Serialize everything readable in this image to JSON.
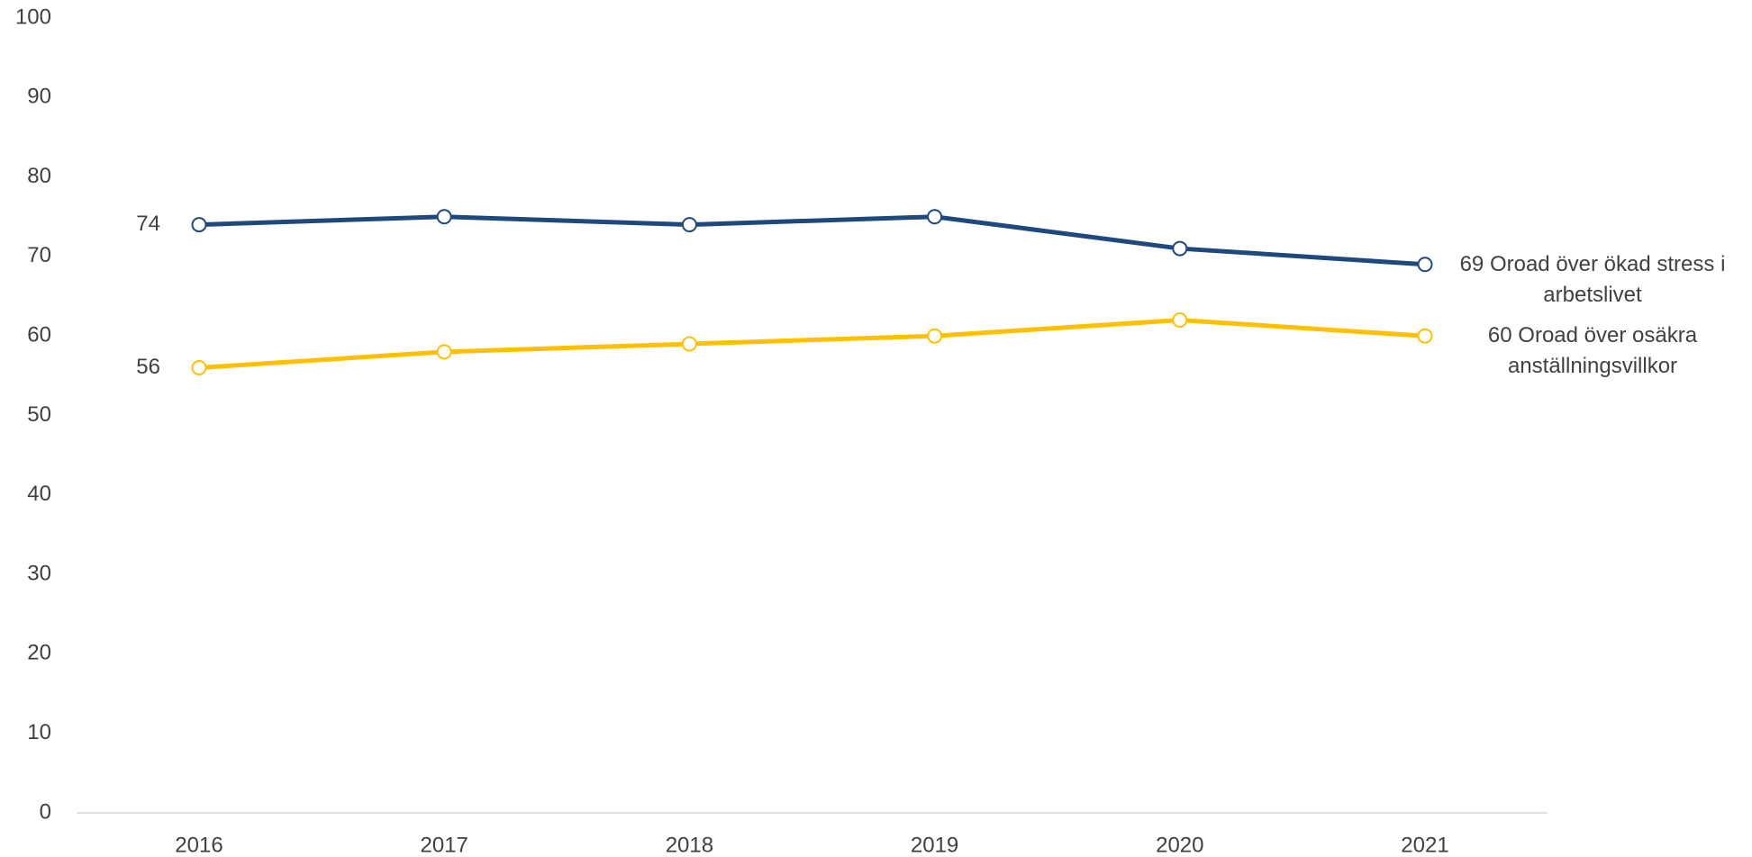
{
  "chart_data": {
    "type": "line",
    "x": [
      2016,
      2017,
      2018,
      2019,
      2020,
      2021
    ],
    "series": [
      {
        "name": "Oroad över ökad stress i arbetslivet",
        "color": "#1f497d",
        "values": [
          74,
          75,
          74,
          75,
          71,
          69
        ]
      },
      {
        "name": "Oroad över osäkra anställningsvillkor",
        "color": "#ffc000",
        "values": [
          56,
          58,
          59,
          60,
          62,
          60
        ]
      }
    ],
    "ylim": [
      0,
      100
    ],
    "yticks": [
      0,
      10,
      20,
      30,
      40,
      50,
      60,
      70,
      80,
      90,
      100
    ],
    "grid": false
  }
}
